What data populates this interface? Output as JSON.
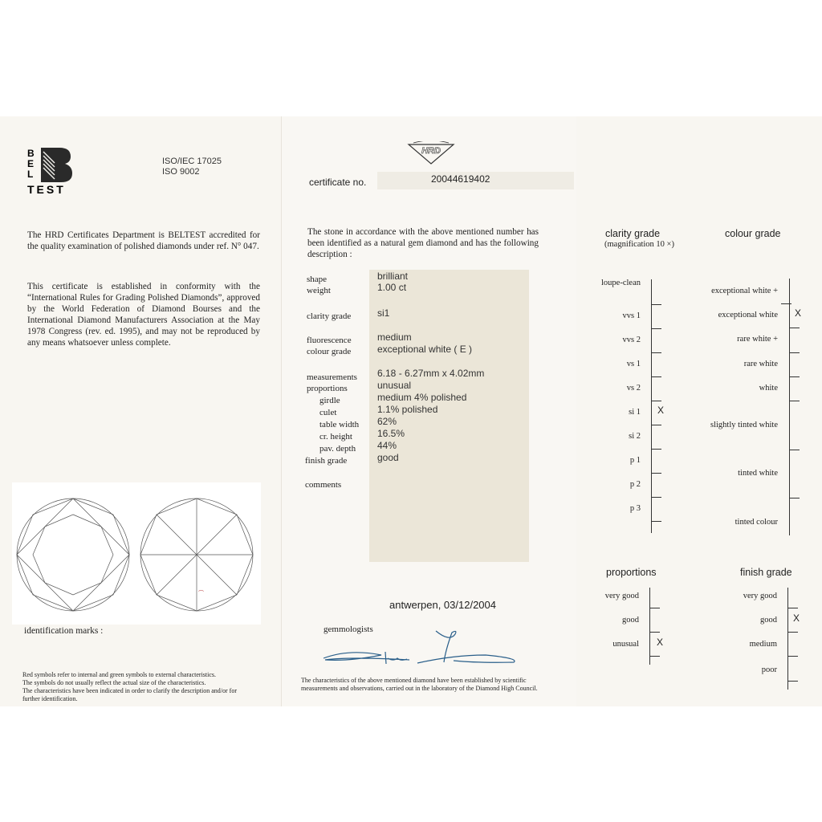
{
  "left_panel": {
    "logo_text": "BELTEST",
    "iso": [
      "ISO/IEC 17025",
      "ISO 9002"
    ],
    "accreditation": "The HRD Certificates Department is BELTEST accredited for the quality examination of polished diamonds under ref. N° 047.",
    "conformity": "This certificate is established in conformity with the “International Rules for Grading Polished Diamonds”, approved by the World Federation of Diamond Bourses and the International Diamond Manufacturers Association at the May 1978 Congress (rev. ed. 1995), and may not be reproduced by any means whatsoever unless complete.",
    "identification_marks": "identification marks :",
    "footnote": [
      "Red symbols refer to internal and green symbols to external characteristics.",
      "The symbols do not usually reflect the actual size of the characteristics.",
      "The characteristics have been indicated in order to clarify the description and/or for further identification."
    ]
  },
  "center_panel": {
    "logo_text": "HRD",
    "certificate_label": "certificate no.",
    "certificate_number": "20044619402",
    "intro": "The stone in accordance with the above mentioned number has been identified as a natural gem diamond and has the following description :",
    "fields": [
      {
        "label": "shape",
        "value": "brilliant"
      },
      {
        "label": "weight",
        "value": "1.00  ct"
      },
      {
        "label": "clarity grade",
        "value": "si1"
      },
      {
        "label": "fluorescence",
        "value": "medium"
      },
      {
        "label": "colour grade",
        "value": "exceptional  white  ( E )"
      },
      {
        "label": "measurements",
        "value": "6.18  -  6.27mm  x  4.02mm"
      },
      {
        "label": "proportions",
        "value": "unusual"
      },
      {
        "label": "girdle",
        "value": "medium  4%  polished"
      },
      {
        "label": "culet",
        "value": "1.1%  polished"
      },
      {
        "label": "table width",
        "value": "62%"
      },
      {
        "label": "cr. height",
        "value": "16.5%"
      },
      {
        "label": "pav. depth",
        "value": "44%"
      },
      {
        "label": "finish grade",
        "value": "good"
      },
      {
        "label": "comments",
        "value": ""
      }
    ],
    "place_date": "antwerpen,  03/12/2004",
    "gemmologists": "gemmologists",
    "footnote": "The characteristics of the above mentioned diamond have been established by scientific measurements and observations, carried out in the laboratory of the Diamond High Council."
  },
  "right_panel": {
    "clarity_title": "clarity grade",
    "clarity_subtitle": "(magnification 10 ×)",
    "clarity_grades": [
      "loupe-clean",
      "vvs 1",
      "vvs 2",
      "vs 1",
      "vs 2",
      "si 1",
      "si 2",
      "p 1",
      "p 2",
      "p 3"
    ],
    "clarity_selected": "si 1",
    "colour_title": "colour grade",
    "colour_grades": [
      "exceptional white +",
      "exceptional white",
      "rare white +",
      "rare white",
      "white",
      "slightly tinted white",
      "tinted white",
      "tinted colour"
    ],
    "colour_selected": "exceptional white",
    "proportions_title": "proportions",
    "proportions_grades": [
      "very good",
      "good",
      "unusual"
    ],
    "proportions_selected": "unusual",
    "finish_title": "finish grade",
    "finish_grades": [
      "very good",
      "good",
      "medium",
      "poor"
    ],
    "finish_selected": "good",
    "mark_symbol": "X"
  },
  "colors": {
    "paper": "#f8f6f1",
    "value_box": "#ebe6d8",
    "signature": "#2a5f8a"
  }
}
